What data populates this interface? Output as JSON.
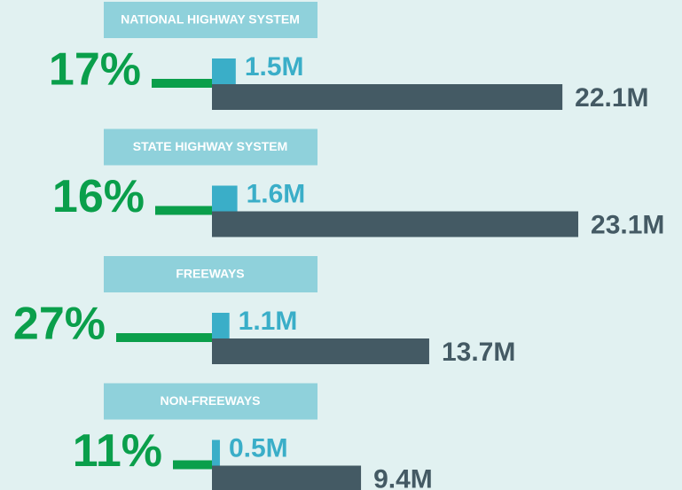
{
  "chart_data": {
    "type": "bar",
    "categories": [
      "NATIONAL HIGHWAY SYSTEM",
      "STATE HIGHWAY SYSTEM",
      "FREEWAYS",
      "NON-FREEWAYS"
    ],
    "series": [
      {
        "color": "#3aaec8",
        "values": [
          1.5,
          1.6,
          1.1,
          0.5
        ],
        "value_labels": [
          "1.5M",
          "1.6M",
          "1.1M",
          "0.5M"
        ]
      },
      {
        "color": "#445a64",
        "values": [
          22.1,
          23.1,
          13.7,
          9.4
        ],
        "value_labels": [
          "22.1M",
          "23.1M",
          "13.7M",
          "9.4M"
        ]
      }
    ],
    "shares": {
      "color": "#0a9f4b",
      "values": [
        17,
        16,
        27,
        11
      ],
      "value_labels": [
        "17%",
        "16%",
        "27%",
        "11%"
      ]
    }
  }
}
